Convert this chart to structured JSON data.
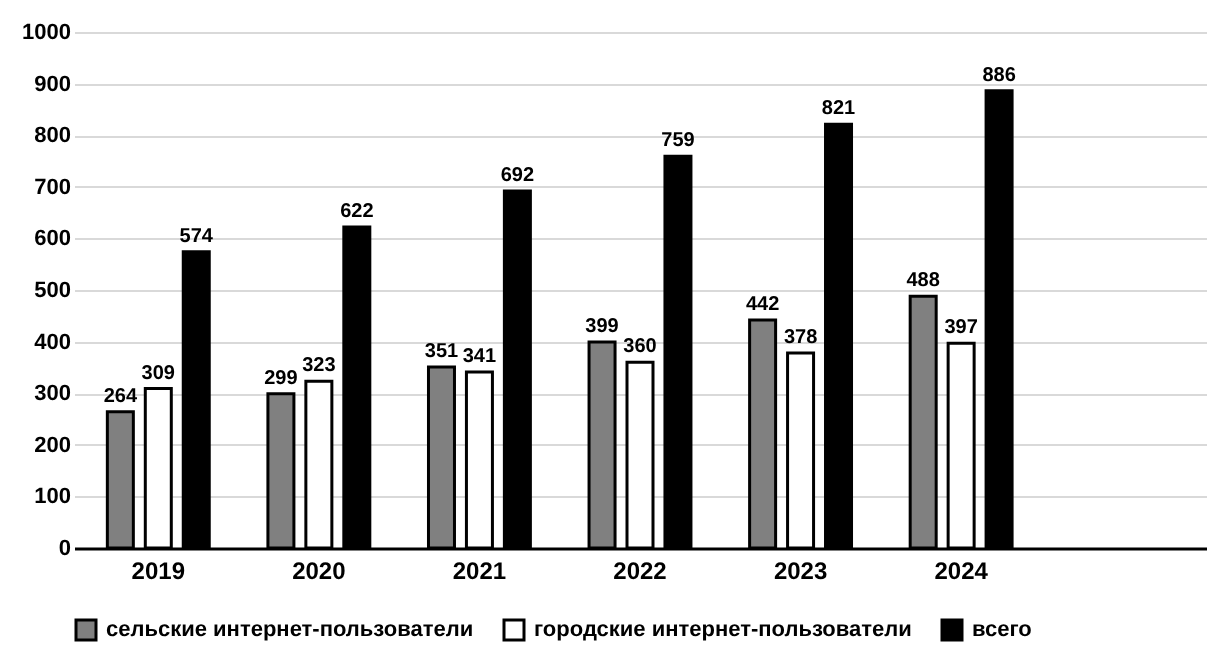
{
  "chart_data": {
    "type": "bar",
    "categories": [
      "2019",
      "2020",
      "2021",
      "2022",
      "2023",
      "2024",
      null
    ],
    "series": [
      {
        "name": "сельские интернет-пользователи",
        "color": "#808080",
        "values": [
          264,
          299,
          351,
          399,
          442,
          488,
          null
        ]
      },
      {
        "name": "городские интернет-пользователи",
        "color": "#ffffff",
        "values": [
          309,
          323,
          341,
          360,
          378,
          397,
          null
        ]
      },
      {
        "name": "всего",
        "color": "#000000",
        "values": [
          574,
          622,
          692,
          759,
          821,
          886,
          null
        ]
      }
    ],
    "ylim": [
      0,
      1000
    ],
    "yticks": [
      0,
      100,
      200,
      300,
      400,
      500,
      600,
      700,
      800,
      900,
      1000
    ],
    "grid": "y",
    "legend": "bottom",
    "data_labels": true
  }
}
